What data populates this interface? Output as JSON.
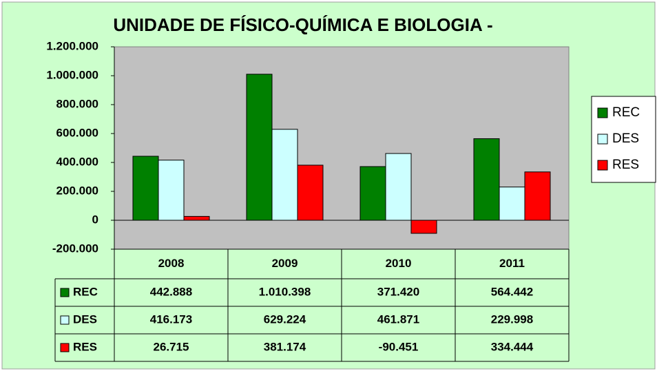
{
  "chart_data": {
    "type": "bar",
    "title": "UNIDADE DE FÍSICO-QUÍMICA E BIOLOGIA -",
    "categories": [
      "2008",
      "2009",
      "2010",
      "2011"
    ],
    "series": [
      {
        "name": "REC",
        "color": "#008000",
        "values": [
          442888,
          1010398,
          371420,
          564442
        ],
        "value_labels": [
          "442.888",
          "1.010.398",
          "371.420",
          "564.442"
        ]
      },
      {
        "name": "DES",
        "color": "#ccffff",
        "values": [
          416173,
          629224,
          461871,
          229998
        ],
        "value_labels": [
          "416.173",
          "629.224",
          "461.871",
          "229.998"
        ]
      },
      {
        "name": "RES",
        "color": "#ff0000",
        "values": [
          26715,
          381174,
          -90451,
          334444
        ],
        "value_labels": [
          "26.715",
          "381.174",
          "-90.451",
          "334.444"
        ]
      }
    ],
    "ylim": [
      -200000,
      1200000
    ],
    "yticks": [
      {
        "value": -200000,
        "label": "-200.000"
      },
      0,
      {
        "value": 200000,
        "label": "200.000"
      },
      {
        "value": 400000,
        "label": "400.000"
      },
      {
        "value": 600000,
        "label": "600.000"
      },
      {
        "value": 800000,
        "label": "800.000"
      },
      {
        "value": 1000000,
        "label": "1.000.000"
      },
      {
        "value": 1200000,
        "label": "1.200.000"
      }
    ],
    "legend": "right",
    "plot_background": "#c0c0c0"
  }
}
